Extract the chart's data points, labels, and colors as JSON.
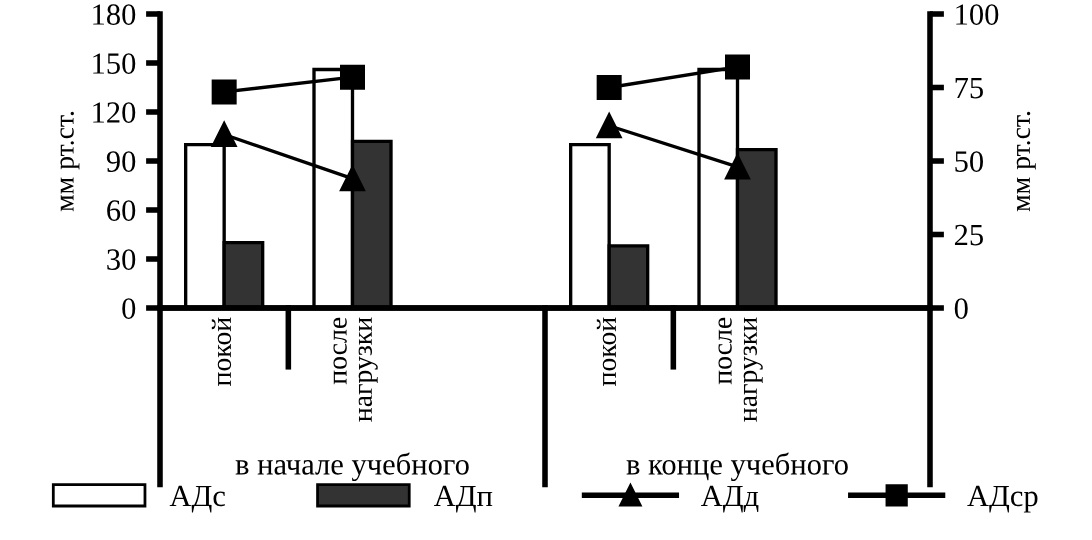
{
  "chart_data": {
    "type": "bar",
    "categories": [
      "покой",
      "после нагрузки",
      null,
      "покой",
      "после нагрузки",
      null
    ],
    "ylabel": "мм рт.ст.",
    "y2label": "мм рт.ст.",
    "ylim": [
      0,
      180
    ],
    "yticks": [
      0,
      30,
      60,
      90,
      120,
      150,
      180
    ],
    "y2lim": [
      0,
      100
    ],
    "y2ticks": [
      0,
      25,
      50,
      75,
      100
    ],
    "annotations": [
      "в начале учебного",
      "в конце учебного"
    ],
    "series": [
      {
        "name": "АДс",
        "color": "#ffffff",
        "values": [
          100,
          146,
          null,
          100,
          146,
          null
        ]
      },
      {
        "name": "АДп",
        "color": "#333333",
        "values": [
          40,
          102,
          null,
          38,
          97,
          null
        ]
      },
      {
        "name": "АДд",
        "type": "line",
        "axis": "y2",
        "marker": "triangle",
        "color": "#000000",
        "values": [
          59,
          44,
          null,
          62,
          48,
          null
        ]
      },
      {
        "name": "АДср",
        "type": "line",
        "axis": "y2",
        "marker": "square",
        "color": "#000000",
        "values": [
          73.5,
          78.5,
          null,
          75,
          82,
          null
        ]
      }
    ],
    "legend": "bottom",
    "grid": false
  }
}
